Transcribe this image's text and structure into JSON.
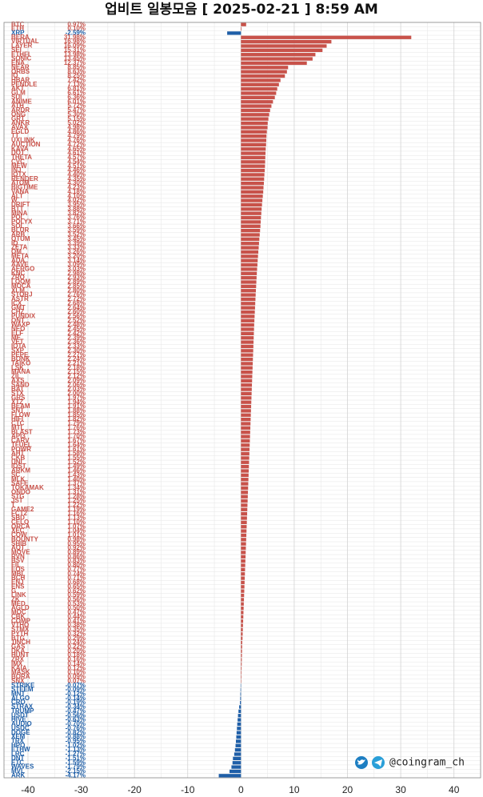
{
  "chart_data": {
    "type": "bar",
    "orientation": "horizontal",
    "title": "업비트 일봉모음 [ 2025-02-21 ]  8:59 AM",
    "watermark": "@coingram_ch",
    "xlim": [
      -44.5,
      45
    ],
    "xticks": [
      -40,
      -30,
      -20,
      -10,
      0,
      10,
      20,
      30,
      40
    ],
    "grid": true,
    "color_positive": "#c8524a",
    "color_negative": "#1f5fa8",
    "categories": [
      "BTC",
      "ETH",
      "XRP",
      "BERA",
      "VIRTUAL",
      "LAYER",
      "SEI",
      "ETHFI",
      "SONIC",
      "ENA",
      "NEAR",
      "ORBS",
      "IO",
      "HBAR",
      "PENDLE",
      "AKT",
      "GLM",
      "SUI",
      "ANIME",
      "ATH",
      "ARDR",
      "ONG",
      "GRT",
      "ANKR",
      "AVAX",
      "EGLD",
      "TT",
      "UXLINK",
      "AUCTION",
      "KAVA",
      "DOT",
      "THETA",
      "CVC",
      "MEW",
      "INJ",
      "IOTX",
      "RENDER",
      "ATOM",
      "BIGTIME",
      "VANA",
      "ALT",
      "W",
      "DRIFT",
      "BTT",
      "MINA",
      "POL",
      "POLYX",
      "SOL",
      "BLUR",
      "ARB",
      "QTUM",
      "IQ",
      "ZETA",
      "OM",
      "META",
      "ADA",
      "AAVE",
      "AERGO",
      "KNC",
      "ZRO",
      "LOOM",
      "MOCA",
      "XLM",
      "STORJ",
      "ASTR",
      "ICX",
      "GMT",
      "CHZ",
      "PUNDIX",
      "ONT",
      "WAXP",
      "NEO",
      "ELF",
      "ME",
      "VET",
      "IOTA",
      "SXP",
      "PEPE",
      "BONK",
      "TAIKO",
      "LSK",
      "MANA",
      "ZIL",
      "AXS",
      "SAND",
      "BAT",
      "STX",
      "GRS",
      "XTZ",
      "BEAM",
      "SNT",
      "FLOW",
      "HIFI",
      "CTC",
      "MTL",
      "BLAST",
      "API3",
      "CARV",
      "TFUEL",
      "POWR",
      "AHT",
      "CKB",
      "UNI",
      "IOST",
      "ARKM",
      "SC",
      "MLK",
      "SAFE",
      "TOKAMAK",
      "ONDO",
      "STG",
      "JST",
      "T",
      "GAME2",
      "FCT2",
      "SBD",
      "CELO",
      "ORCA",
      "XEC",
      "COW",
      "BOUNTY",
      "SHIB",
      "AQT",
      "MOVE",
      "RVN",
      "BSV",
      "FIL",
      "EOS",
      "MBL",
      "BCH",
      "ENJ",
      "ENS",
      "G",
      "LINK",
      "ZK",
      "MED",
      "AGLD",
      "MOC",
      "CBK",
      "COMP",
      "VTHO",
      "STMX",
      "PYTH",
      "BTG",
      "1INCH",
      "GAS",
      "DKA",
      "HUNT",
      "ZRX",
      "IMX",
      "KAIA",
      "MASK",
      "BORA",
      "SNX",
      "STRIKE",
      "STEEM",
      "MNT",
      "ALGO",
      "CRO",
      "STRAX",
      "TRUMP",
      "USDT",
      "HIVE",
      "AUDIO",
      "USDC",
      "DOGE",
      "XEM",
      "TRX",
      "HPO",
      "ETHW",
      "LRC",
      "DNT",
      "ETC",
      "WAVES",
      "MVL",
      "ARK"
    ],
    "values": [
      0.97,
      0.1,
      -2.59,
      31.98,
      16.98,
      16.09,
      15.31,
      13.98,
      13.45,
      12.37,
      8.85,
      8.63,
      8.25,
      7.42,
      7.13,
      6.81,
      6.61,
      6.36,
      6.01,
      5.72,
      5.47,
      5.3,
      5.15,
      5.02,
      4.98,
      4.86,
      4.79,
      4.76,
      4.72,
      4.65,
      4.61,
      4.57,
      4.54,
      4.51,
      4.46,
      4.4,
      4.35,
      4.3,
      4.23,
      4.18,
      4.1,
      4.02,
      3.95,
      3.88,
      3.82,
      3.76,
      3.71,
      3.66,
      3.59,
      3.52,
      3.45,
      3.39,
      3.33,
      3.26,
      3.2,
      3.14,
      3.09,
      3.03,
      2.98,
      2.93,
      2.89,
      2.85,
      2.8,
      2.76,
      2.72,
      2.68,
      2.64,
      2.6,
      2.56,
      2.52,
      2.48,
      2.45,
      2.42,
      2.39,
      2.36,
      2.33,
      2.3,
      2.27,
      2.24,
      2.21,
      2.18,
      2.15,
      2.12,
      2.09,
      2.06,
      2.03,
      2.0,
      1.97,
      1.94,
      1.91,
      1.88,
      1.85,
      1.82,
      1.79,
      1.76,
      1.73,
      1.7,
      1.67,
      1.64,
      1.61,
      1.58,
      1.55,
      1.52,
      1.49,
      1.46,
      1.43,
      1.4,
      1.37,
      1.34,
      1.31,
      1.28,
      1.25,
      1.22,
      1.19,
      1.16,
      1.13,
      1.1,
      1.07,
      1.04,
      1.01,
      0.98,
      0.95,
      0.92,
      0.89,
      0.86,
      0.83,
      0.8,
      0.77,
      0.74,
      0.71,
      0.68,
      0.65,
      0.62,
      0.59,
      0.56,
      0.53,
      0.5,
      0.47,
      0.44,
      0.41,
      0.38,
      0.35,
      0.32,
      0.29,
      0.24,
      0.22,
      0.2,
      0.18,
      0.16,
      0.14,
      0.12,
      0.1,
      0.09,
      0.07,
      -0.07,
      -0.09,
      -0.12,
      -0.14,
      -0.19,
      -0.34,
      -0.47,
      -0.56,
      -0.63,
      -0.7,
      -0.76,
      -0.82,
      -0.88,
      -0.95,
      -1.02,
      -1.13,
      -1.27,
      -1.51,
      -1.59,
      -1.79,
      -2.15,
      -4.17
    ],
    "value_labels": [
      "0.97%",
      "0.10%",
      "-2.59%",
      "31.98%",
      "16.98%",
      "16.09%",
      "15.31%",
      "13.98%",
      "13.45%",
      "12.37%",
      "8.85%",
      "8.63%",
      "8.25%",
      "7.42%",
      "7.13%",
      "6.81%",
      "6.61%",
      "6.36%",
      "6.01%",
      "5.72%",
      "5.47%",
      "5.30%",
      "5.15%",
      "5.02%",
      "4.98%",
      "4.86%",
      "4.79%",
      "4.76%",
      "4.72%",
      "4.65%",
      "4.61%",
      "4.57%",
      "4.54%",
      "4.51%",
      "4.46%",
      "4.40%",
      "4.35%",
      "4.30%",
      "4.23%",
      "4.18%",
      "4.10%",
      "4.02%",
      "3.95%",
      "3.88%",
      "3.82%",
      "3.76%",
      "3.71%",
      "3.66%",
      "3.59%",
      "3.52%",
      "3.45%",
      "3.39%",
      "3.33%",
      "3.26%",
      "3.20%",
      "3.14%",
      "3.09%",
      "3.03%",
      "2.98%",
      "2.93%",
      "2.89%",
      "2.85%",
      "2.80%",
      "2.76%",
      "2.72%",
      "2.68%",
      "2.64%",
      "2.60%",
      "2.56%",
      "2.52%",
      "2.48%",
      "2.45%",
      "2.42%",
      "2.39%",
      "2.36%",
      "2.33%",
      "2.30%",
      "2.27%",
      "2.24%",
      "2.21%",
      "2.18%",
      "2.15%",
      "2.12%",
      "2.09%",
      "2.06%",
      "2.03%",
      "2.00%",
      "1.97%",
      "1.94%",
      "1.91%",
      "1.88%",
      "1.85%",
      "1.82%",
      "1.79%",
      "1.76%",
      "1.73%",
      "1.70%",
      "1.67%",
      "1.64%",
      "1.61%",
      "1.58%",
      "1.55%",
      "1.52%",
      "1.49%",
      "1.46%",
      "1.43%",
      "1.40%",
      "1.37%",
      "1.34%",
      "1.31%",
      "1.28%",
      "1.25%",
      "1.22%",
      "1.19%",
      "1.16%",
      "1.13%",
      "1.10%",
      "1.07%",
      "1.04%",
      "1.01%",
      "0.98%",
      "0.95%",
      "0.92%",
      "0.89%",
      "0.86%",
      "0.83%",
      "0.80%",
      "0.77%",
      "0.74%",
      "0.71%",
      "0.68%",
      "0.65%",
      "0.62%",
      "0.59%",
      "0.56%",
      "0.53%",
      "0.50%",
      "0.47%",
      "0.44%",
      "0.41%",
      "0.38%",
      "0.35%",
      "0.32%",
      "0.29%",
      "0.24%",
      "0.22%",
      "0.20%",
      "0.18%",
      "0.16%",
      "0.14%",
      "0.12%",
      "0.10%",
      "0.09%",
      "0.07%",
      "-0.07%",
      "-0.09%",
      "-0.12%",
      "-0.14%",
      "-0.19%",
      "-0.34%",
      "-0.47%",
      "-0.56%",
      "-0.63%",
      "-0.70%",
      "-0.76%",
      "-0.82%",
      "-0.88%",
      "-0.95%",
      "-1.02%",
      "-1.13%",
      "-1.27%",
      "-1.51%",
      "-1.59%",
      "-1.79%",
      "-2.15%",
      "-4.17%"
    ]
  }
}
